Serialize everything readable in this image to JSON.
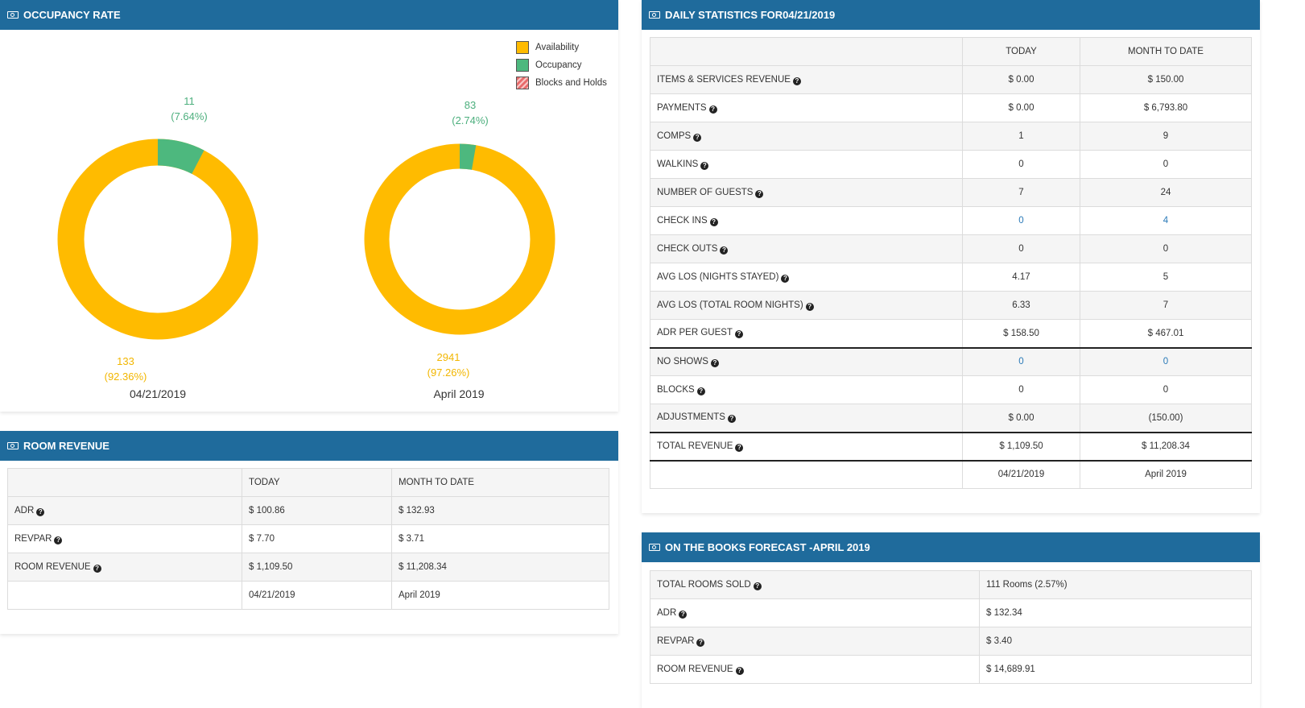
{
  "occupancy": {
    "title": "OCCUPANCY RATE",
    "legend": [
      {
        "label": "Availability",
        "color": "#ffbb00"
      },
      {
        "label": "Occupancy",
        "color": "#4db87e"
      },
      {
        "label": "Blocks and Holds",
        "color": "#e86b6b"
      }
    ],
    "day": {
      "date": "04/21/2019",
      "occupancy_value": "11",
      "occupancy_pct": "(7.64%)",
      "availability_value": "133",
      "availability_pct": "(92.36%)",
      "occupancy_fraction": 0.0764
    },
    "month": {
      "date": "April 2019",
      "occupancy_value": "83",
      "occupancy_pct": "(2.74%)",
      "availability_value": "2941",
      "availability_pct": "(97.26%)",
      "occupancy_fraction": 0.0274
    }
  },
  "room_revenue": {
    "title": "ROOM REVENUE",
    "headers": [
      "",
      "TODAY",
      "MONTH TO DATE"
    ],
    "rows": [
      {
        "label": "ADR",
        "today": "$ 100.86",
        "mtd": "$ 132.93"
      },
      {
        "label": "REVPAR",
        "today": "$ 7.70",
        "mtd": "$ 3.71"
      },
      {
        "label": "ROOM REVENUE",
        "today": "$ 1,109.50",
        "mtd": "$ 11,208.34"
      }
    ],
    "footer": {
      "today": "04/21/2019",
      "mtd": "April 2019"
    }
  },
  "daily_stats": {
    "title": "DAILY STATISTICS FOR04/21/2019",
    "headers": [
      "",
      "TODAY",
      "MONTH TO DATE"
    ],
    "rows": [
      {
        "label": "ITEMS & SERVICES REVENUE",
        "today": "$ 0.00",
        "mtd": "$ 150.00"
      },
      {
        "label": "PAYMENTS",
        "today": "$ 0.00",
        "mtd": "$ 6,793.80"
      },
      {
        "label": "COMPS",
        "today": "1",
        "mtd": "9"
      },
      {
        "label": "WALKINS",
        "today": "0",
        "mtd": "0"
      },
      {
        "label": "NUMBER OF GUESTS",
        "today": "7",
        "mtd": "24"
      },
      {
        "label": "CHECK INS",
        "today": "0",
        "mtd": "4"
      },
      {
        "label": "CHECK OUTS",
        "today": "0",
        "mtd": "0"
      },
      {
        "label": "AVG LOS (NIGHTS STAYED)",
        "today": "4.17",
        "mtd": "5"
      },
      {
        "label": "AVG LOS (TOTAL ROOM NIGHTS)",
        "today": "6.33",
        "mtd": "7"
      },
      {
        "label": "ADR PER GUEST",
        "today": "$ 158.50",
        "mtd": "$ 467.01"
      },
      {
        "label": "NO SHOWS",
        "today": "0",
        "mtd": "0"
      },
      {
        "label": "BLOCKS",
        "today": "0",
        "mtd": "0"
      },
      {
        "label": "ADJUSTMENTS",
        "today": "$ 0.00",
        "mtd": "(150.00)"
      },
      {
        "label": "TOTAL REVENUE",
        "today": "$ 1,109.50",
        "mtd": "$ 11,208.34"
      }
    ],
    "footer": {
      "today": "04/21/2019",
      "mtd": "April 2019"
    }
  },
  "forecast": {
    "title": "ON THE BOOKS FORECAST -APRIL 2019",
    "rows": [
      {
        "label": "TOTAL ROOMS SOLD",
        "value": "111 Rooms (2.57%)"
      },
      {
        "label": "ADR",
        "value": "$ 132.34"
      },
      {
        "label": "REVPAR",
        "value": "$ 3.40"
      },
      {
        "label": "ROOM REVENUE",
        "value": "$ 14,689.91"
      }
    ]
  }
}
